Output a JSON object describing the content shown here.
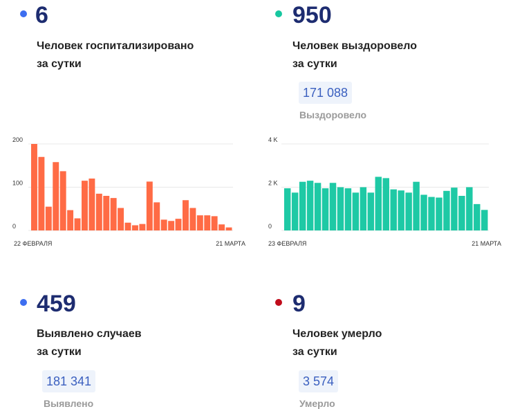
{
  "hospitalized": {
    "number": "6",
    "line1": "Человек госпитализировано",
    "line2": "за сутки",
    "color": "#3d6ef0"
  },
  "recovered": {
    "number": "950",
    "line1": "Человек выздоровело",
    "line2": "за сутки",
    "total": "171 088",
    "total_label": "Выздоровело",
    "color": "#17c7a0"
  },
  "detected": {
    "number": "459",
    "line1": "Выявлено случаев",
    "line2": "за сутки",
    "total": "181 341",
    "total_label": "Выявлено",
    "color": "#3d6ef0"
  },
  "died": {
    "number": "9",
    "line1": "Человек умерло",
    "line2": "за сутки",
    "total": "3 574",
    "total_label": "Умерло",
    "color": "#c00c1b"
  },
  "chart_data": [
    {
      "type": "bar",
      "color": "#ff6b45",
      "x_start_label": "22 ФЕВРАЛЯ",
      "x_end_label": "21 МАРТА",
      "ylim": [
        0,
        200
      ],
      "yticks": [
        "0",
        "100",
        "200"
      ],
      "grid": true,
      "values": [
        200,
        170,
        55,
        158,
        137,
        47,
        28,
        115,
        120,
        85,
        80,
        75,
        52,
        18,
        12,
        15,
        113,
        65,
        25,
        22,
        27,
        70,
        52,
        35,
        35,
        33,
        14,
        7
      ]
    },
    {
      "type": "bar",
      "color": "#1ec9a5",
      "x_start_label": "23 ФЕВРАЛЯ",
      "x_end_label": "21 МАРТА",
      "ylim": [
        0,
        4000
      ],
      "yticks": [
        "0",
        "2 K",
        "4 K"
      ],
      "grid": true,
      "values": [
        1950,
        1750,
        2250,
        2300,
        2200,
        1950,
        2200,
        2000,
        1950,
        1750,
        2000,
        1750,
        2480,
        2420,
        1900,
        1850,
        1750,
        2250,
        1650,
        1550,
        1520,
        1830,
        1980,
        1600,
        2000,
        1220,
        950
      ]
    }
  ]
}
